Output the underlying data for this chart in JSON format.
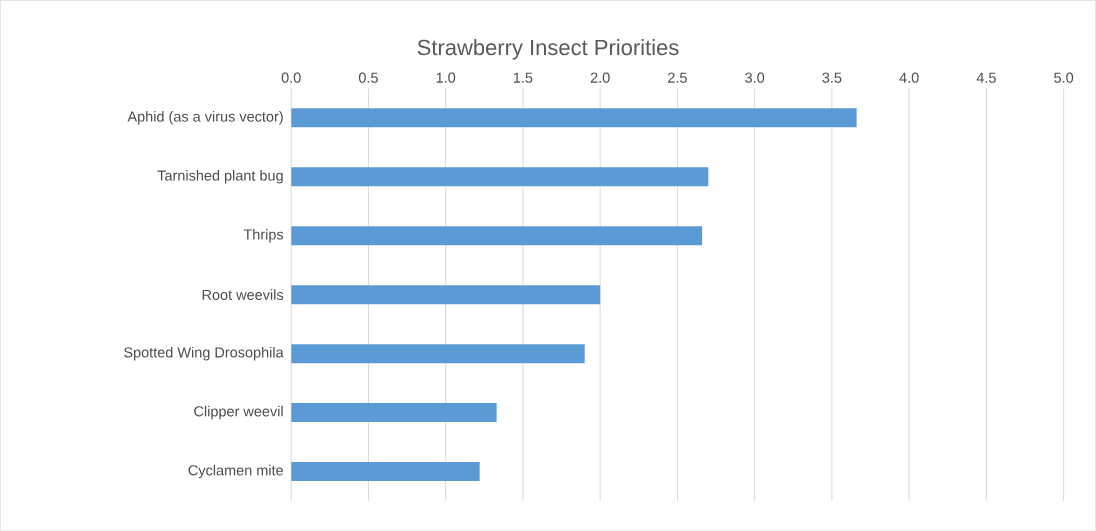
{
  "chart_data": {
    "type": "bar",
    "orientation": "horizontal",
    "title": "Strawberry Insect Priorities",
    "categories": [
      "Aphid (as a virus vector)",
      "Tarnished plant bug",
      "Thrips",
      "Root weevils",
      "Spotted Wing Drosophila",
      "Clipper weevil",
      "Cyclamen mite"
    ],
    "values": [
      3.66,
      2.7,
      2.66,
      2.0,
      1.9,
      1.33,
      1.22
    ],
    "color": "#5b9bd5",
    "xlim": [
      0,
      5
    ],
    "xticks": [
      {
        "value": 0,
        "label": "0.0"
      },
      {
        "value": 0.5,
        "label": "0.5"
      },
      {
        "value": 1,
        "label": "1.0"
      },
      {
        "value": 1.5,
        "label": "1.5"
      },
      {
        "value": 2,
        "label": "2.0"
      },
      {
        "value": 2.5,
        "label": "2.5"
      },
      {
        "value": 3,
        "label": "3.0"
      },
      {
        "value": 3.5,
        "label": "3.5"
      },
      {
        "value": 4,
        "label": "4.0"
      },
      {
        "value": 4.5,
        "label": "4.5"
      },
      {
        "value": 5,
        "label": "5.0"
      }
    ],
    "grid": "x"
  }
}
